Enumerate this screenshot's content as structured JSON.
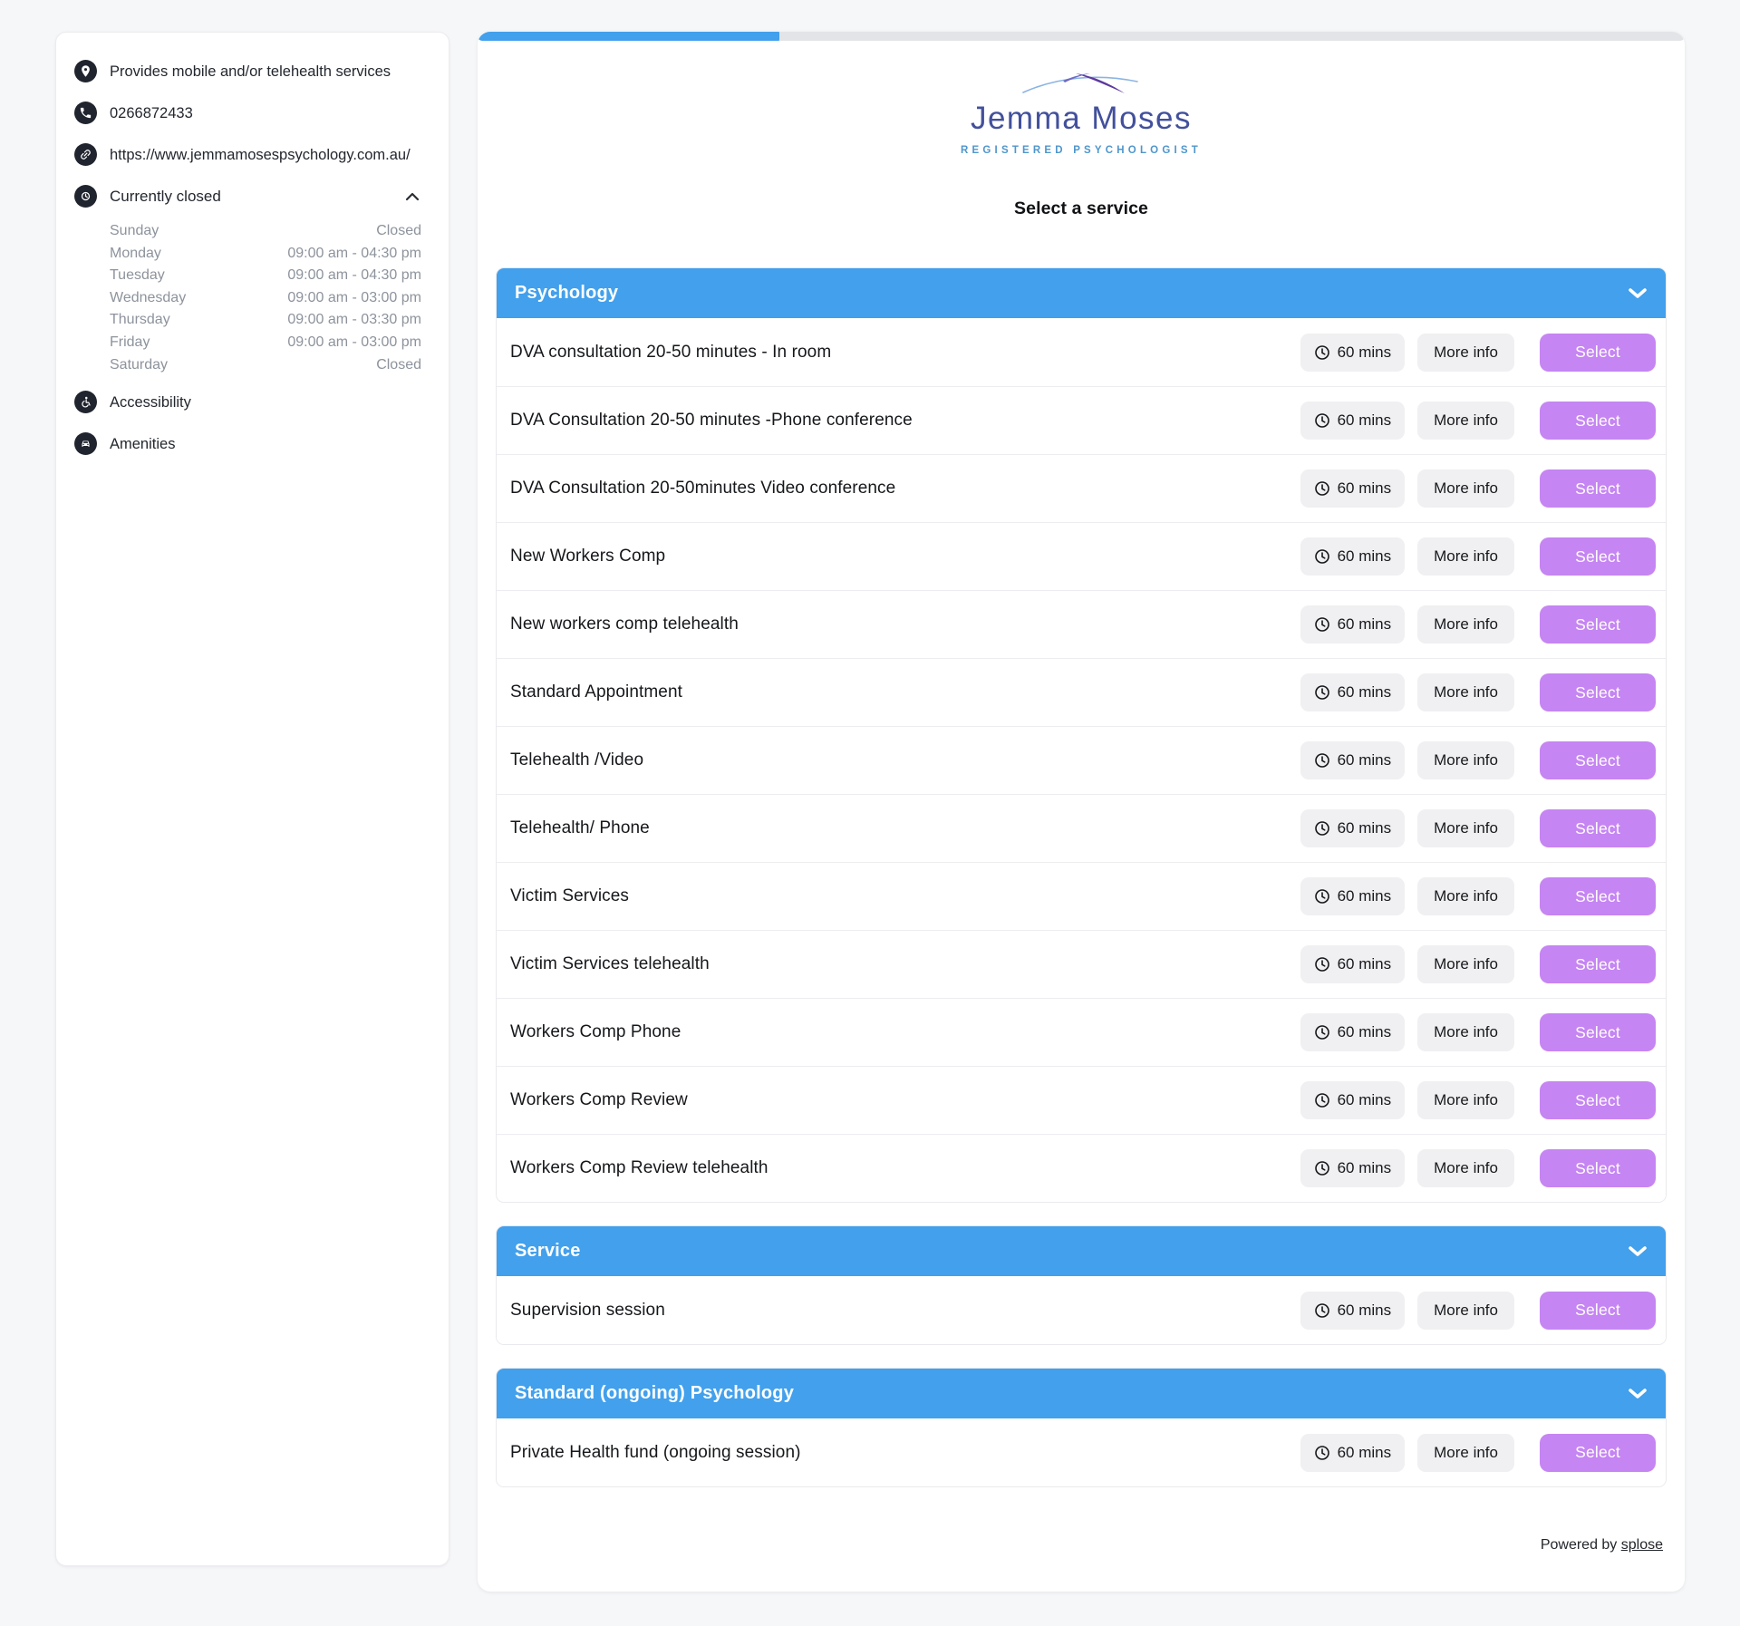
{
  "sidebar": {
    "contact": [
      {
        "icon": "location-pin-icon",
        "text": "Provides mobile and/or telehealth services"
      },
      {
        "icon": "phone-icon",
        "text": "0266872433"
      },
      {
        "icon": "link-icon",
        "text": "https://www.jemmamosespsychology.com.au/"
      }
    ],
    "hours": {
      "icon": "clock-icon",
      "status": "Currently closed",
      "days": [
        {
          "day": "Sunday",
          "time": "Closed"
        },
        {
          "day": "Monday",
          "time": "09:00 am - 04:30 pm"
        },
        {
          "day": "Tuesday",
          "time": "09:00 am - 04:30 pm"
        },
        {
          "day": "Wednesday",
          "time": "09:00 am - 03:00 pm"
        },
        {
          "day": "Thursday",
          "time": "09:00 am - 03:30 pm"
        },
        {
          "day": "Friday",
          "time": "09:00 am - 03:00 pm"
        },
        {
          "day": "Saturday",
          "time": "Closed"
        }
      ]
    },
    "accessibility_label": "Accessibility",
    "amenities_label": "Amenities"
  },
  "header": {
    "brand_name": "Jemma Moses",
    "brand_subtitle": "REGISTERED PSYCHOLOGIST",
    "step_title": "Select a service",
    "progress_percent": 25
  },
  "labels": {
    "more_info": "More info",
    "select": "Select"
  },
  "sections": [
    {
      "title": "Psychology",
      "services": [
        {
          "name": "DVA consultation 20-50 minutes - In room",
          "duration": "60 mins"
        },
        {
          "name": "DVA Consultation 20-50 minutes -Phone conference",
          "duration": "60 mins"
        },
        {
          "name": "DVA Consultation 20-50minutes Video conference",
          "duration": "60 mins"
        },
        {
          "name": "New Workers Comp",
          "duration": "60 mins"
        },
        {
          "name": "New workers comp telehealth",
          "duration": "60 mins"
        },
        {
          "name": "Standard Appointment",
          "duration": "60 mins"
        },
        {
          "name": "Telehealth /Video",
          "duration": "60 mins"
        },
        {
          "name": "Telehealth/ Phone",
          "duration": "60 mins"
        },
        {
          "name": "Victim Services",
          "duration": "60 mins"
        },
        {
          "name": "Victim Services telehealth",
          "duration": "60 mins"
        },
        {
          "name": "Workers Comp Phone",
          "duration": "60 mins"
        },
        {
          "name": "Workers Comp Review",
          "duration": "60 mins"
        },
        {
          "name": "Workers Comp Review telehealth",
          "duration": "60 mins"
        }
      ]
    },
    {
      "title": "Service",
      "services": [
        {
          "name": "Supervision session",
          "duration": "60 mins"
        }
      ]
    },
    {
      "title": "Standard (ongoing) Psychology",
      "services": [
        {
          "name": "Private Health fund (ongoing session)",
          "duration": "60 mins"
        }
      ]
    }
  ],
  "footer": {
    "powered_by": "Powered by ",
    "brand_link": "splose"
  },
  "colors": {
    "accent_blue": "#42a0ec",
    "select_purple": "#c585f2",
    "pill_gray": "#f0f0f2",
    "progress_track": "#e3e4e7",
    "logo_navy": "#42509c",
    "logo_light_blue": "#4f96cc",
    "hours_text_gray": "#8d939c",
    "page_background": "#f6f7f9"
  }
}
